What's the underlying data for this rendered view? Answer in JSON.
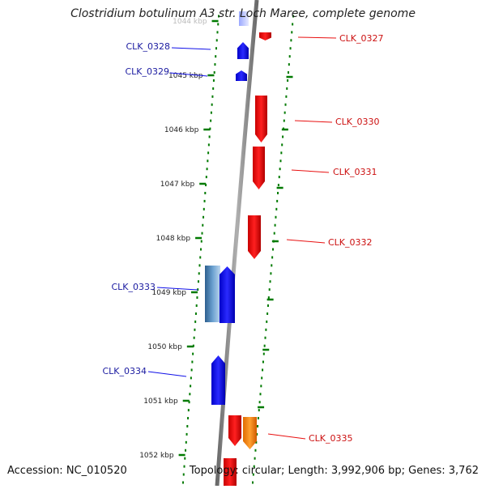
{
  "title": "Clostridium botulinum A3 str. Loch Maree, complete genome",
  "footer": {
    "accession": "Accession: NC_010520",
    "summary": "Topology: circular; Length: 3,992,906 bp; Genes: 3,762"
  },
  "colors": {
    "forward_gene": "#1010e8",
    "reverse_gene": "#e81010",
    "highlight_gene": "#3a78b0",
    "other_gene": "#ff8c00",
    "tick": "#007a00",
    "backbone": "#888888",
    "forward_label": "#1a1aa0",
    "reverse_label": "#cc1010"
  },
  "ticks": [
    {
      "label": "1044 kbp"
    },
    {
      "label": "1045 kbp"
    },
    {
      "label": "1046 kbp"
    },
    {
      "label": "1047 kbp"
    },
    {
      "label": "1048 kbp"
    },
    {
      "label": "1049 kbp"
    },
    {
      "label": "1050 kbp"
    },
    {
      "label": "1051 kbp"
    },
    {
      "label": "1052 kbp"
    }
  ],
  "genes": [
    {
      "name": "CLK_0327",
      "strand": "reverse"
    },
    {
      "name": "CLK_0328",
      "strand": "forward"
    },
    {
      "name": "CLK_0329",
      "strand": "forward"
    },
    {
      "name": "CLK_0330",
      "strand": "reverse"
    },
    {
      "name": "CLK_0331",
      "strand": "reverse"
    },
    {
      "name": "CLK_0332",
      "strand": "reverse"
    },
    {
      "name": "CLK_0333",
      "strand": "forward"
    },
    {
      "name": "CLK_0334",
      "strand": "forward"
    },
    {
      "name": "CLK_0335",
      "strand": "reverse"
    }
  ]
}
